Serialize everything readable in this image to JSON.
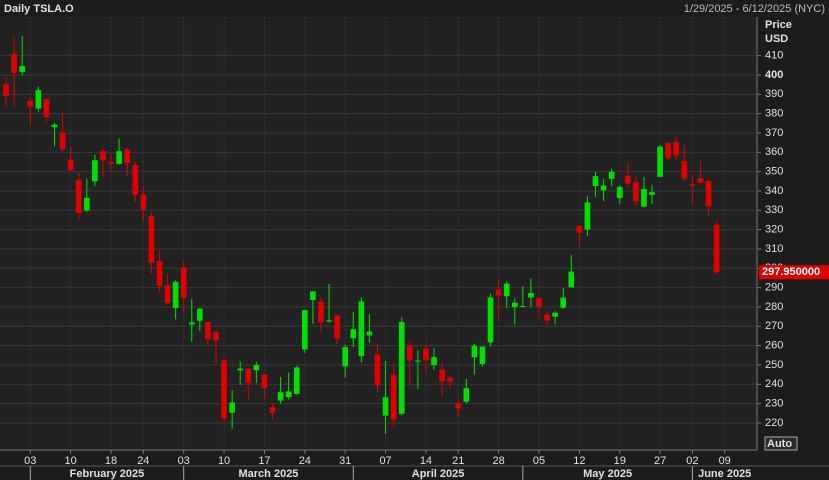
{
  "chart_data": {
    "type": "candlestick",
    "title": "Daily TSLA.O",
    "date_range": "1/29/2025 - 6/12/2025 (NYC)",
    "y_axis_title": "Price",
    "y_axis_unit": "USD",
    "scale_button": "Auto",
    "up_color": "#00e000",
    "down_color": "#e00000",
    "open": [
      395.2,
      411,
      401.5,
      386.7,
      382.6,
      387.5,
      373,
      370.2,
      356.2,
      345.8,
      329.9,
      345,
      360.6,
      355,
      354,
      361.5,
      353.4,
      338.1,
      327,
      303.7,
      291.2,
      279.5,
      300.3,
      270.9,
      272.9,
      272.1,
      267,
      252.5,
      225.3,
      247.2,
      248.1,
      247.3,
      245,
      228.2,
      231.6,
      233.4,
      234.99,
      258,
      283.6,
      282.7,
      272.5,
      275.6,
      249.3,
      263.8,
      254.6,
      265.3,
      255.4,
      223.8,
      245,
      224.7,
      260,
      251.8,
      258.4,
      249.9,
      247.6,
      243.5,
      230.3,
      230.96,
      254,
      250.5,
      261.7,
      288.98,
      285.5,
      279.9,
      280.01,
      284.9,
      284.57,
      276,
      275,
      279.6,
      290.2,
      321.99,
      320,
      342.5,
      340.34,
      346.24,
      336.3,
      347.87,
      344.43,
      331.9,
      337.92,
      347.35,
      364.84,
      365.29,
      355.52,
      343.5,
      346.6,
      345.1,
      322.49
    ],
    "high": [
      398.6,
      420,
      420,
      389,
      394,
      388,
      375.4,
      380.5,
      362.7,
      349.4,
      346.4,
      358.7,
      362,
      359.1,
      367.3,
      362.3,
      354.9,
      342.4,
      328.9,
      309,
      297.2,
      293.9,
      303.9,
      284.3,
      279.6,
      272.65,
      268,
      253.4,
      237,
      251.8,
      248.3,
      251.6,
      245.4,
      230.1,
      243.8,
      246,
      249.5,
      278.6,
      288.2,
      284.9,
      291.9,
      276.1,
      260.6,
      277.5,
      284.99,
      276.3,
      261,
      252,
      250.4,
      274.7,
      262.5,
      257.7,
      261.8,
      258.6,
      251.2,
      244.3,
      232.2,
      242.8,
      261,
      259.5,
      286.85,
      294.86,
      293.32,
      284.45,
      290.87,
      294.78,
      284.85,
      277.7,
      277.9,
      289.8,
      307,
      322.21,
      337.59,
      350,
      346.14,
      351.62,
      343,
      354.99,
      347.35,
      347.27,
      343.18,
      363.79,
      365,
      367.71,
      363.68,
      348.02,
      355.4,
      345.6,
      324.55
    ],
    "low": [
      384,
      384,
      400,
      374,
      381,
      375.4,
      363.2,
      360.3,
      350.5,
      325.1,
      329.1,
      342.5,
      347.5,
      350,
      353.7,
      348,
      334.4,
      324.7,
      297.3,
      288,
      280.9,
      273.6,
      277.3,
      261.8,
      267.7,
      260.02,
      251,
      220,
      217,
      239.7,
      232.6,
      240.7,
      232.8,
      222.3,
      230,
      232.2,
      234.6,
      256.3,
      271.3,
      266.5,
      271.8,
      260.6,
      243.4,
      259.3,
      251.3,
      261.5,
      236,
      214.25,
      217.8,
      223.9,
      239.3,
      237.6,
      245.9,
      247.5,
      233.9,
      237.7,
      222.8,
      229.9,
      245,
      249.2,
      259.6,
      272.42,
      279.47,
      270.78,
      279.81,
      279.81,
      274.4,
      271,
      271,
      279,
      290,
      311.5,
      316.8,
      337,
      334.72,
      342.33,
      333.37,
      341.63,
      332.2,
      331.39,
      333.21,
      347.32,
      355.91,
      356,
      345.29,
      333.33,
      343.04,
      327.33,
      297
    ],
    "close": [
      389.1,
      401,
      404.6,
      383.7,
      392.2,
      378.2,
      374.3,
      361.6,
      350.7,
      328.5,
      336.5,
      355.9,
      355.8,
      354.1,
      360.6,
      354.4,
      337.8,
      330.5,
      302.8,
      290.8,
      281.95,
      292.98,
      284.7,
      272,
      279.1,
      263.45,
      262.7,
      222.2,
      230.6,
      248.1,
      240.7,
      249.98,
      238,
      225.3,
      235.9,
      236.3,
      248.7,
      278.4,
      288.1,
      272,
      273.1,
      263.6,
      259.2,
      268.5,
      282.8,
      267.3,
      239.4,
      233.3,
      221.9,
      272.2,
      252.4,
      252.3,
      252.35,
      254.1,
      241.4,
      241.4,
      227.5,
      237.97,
      260,
      259.5,
      284.95,
      285.88,
      292.03,
      282.16,
      280.52,
      287.21,
      280.26,
      273,
      277,
      284.8,
      298.3,
      318.38,
      334.07,
      347.68,
      342.82,
      349.98,
      342.09,
      343.82,
      334.62,
      341.04,
      339.34,
      362.89,
      356.9,
      358.43,
      346.46,
      342.69,
      344.27,
      332.05,
      297.95
    ],
    "last_price": {
      "value": 297.95,
      "label": "297.950000"
    },
    "xlim": [
      -0.75,
      93
    ],
    "xticks": [
      {
        "value": 3,
        "label": "03"
      },
      {
        "value": 8,
        "label": "10"
      },
      {
        "value": 13,
        "label": "18"
      },
      {
        "value": 17,
        "label": "24"
      },
      {
        "value": 22,
        "label": "03"
      },
      {
        "value": 27,
        "label": "10"
      },
      {
        "value": 32,
        "label": "17"
      },
      {
        "value": 37,
        "label": "24"
      },
      {
        "value": 42,
        "label": "31"
      },
      {
        "value": 47,
        "label": "07"
      },
      {
        "value": 52,
        "label": "14"
      },
      {
        "value": 56,
        "label": "21"
      },
      {
        "value": 61,
        "label": "28"
      },
      {
        "value": 66,
        "label": "05"
      },
      {
        "value": 71,
        "label": "12"
      },
      {
        "value": 76,
        "label": "19"
      },
      {
        "value": 81,
        "label": "27"
      },
      {
        "value": 85,
        "label": "02"
      },
      {
        "value": 89,
        "label": "09"
      }
    ],
    "months": [
      {
        "value": 3,
        "label": "February 2025"
      },
      {
        "value": 22,
        "label": "March 2025"
      },
      {
        "value": 43,
        "label": "April 2025"
      },
      {
        "value": 64,
        "label": "May 2025"
      },
      {
        "value": 85,
        "label": "June 2025"
      }
    ],
    "ylim": [
      206,
      430
    ],
    "yticks": [
      220,
      230,
      240,
      250,
      260,
      270,
      280,
      290,
      300,
      310,
      320,
      330,
      340,
      350,
      360,
      370,
      380,
      390,
      400,
      410
    ],
    "grid": true
  }
}
